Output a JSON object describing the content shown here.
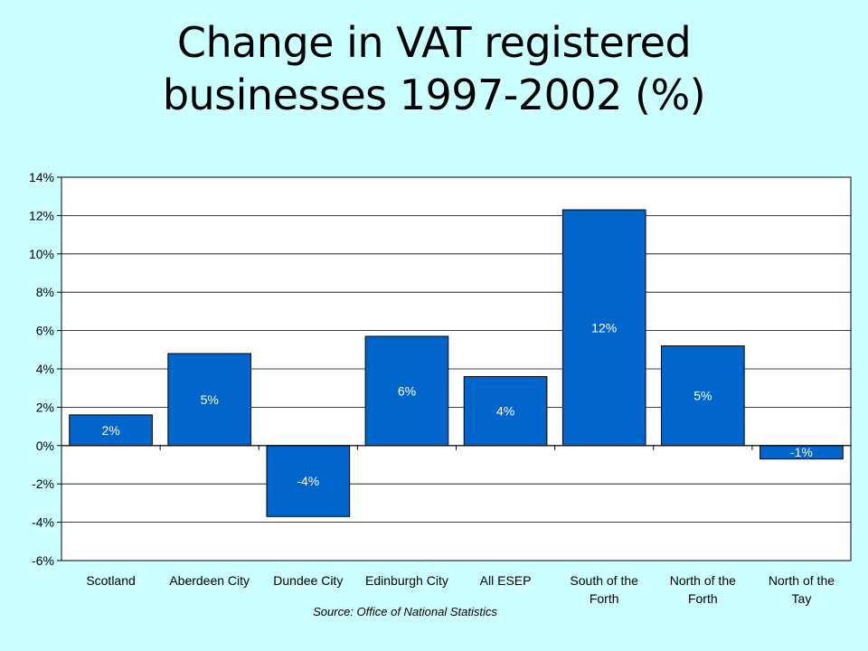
{
  "slide": {
    "title_line1": "Change in VAT registered",
    "title_line2": "businesses 1997-2002 (%)",
    "background": "#ccffff"
  },
  "chart_data": {
    "type": "bar",
    "categories": [
      [
        "Scotland"
      ],
      [
        "Aberdeen City"
      ],
      [
        "Dundee City"
      ],
      [
        "Edinburgh City"
      ],
      [
        "All ESEP"
      ],
      [
        "South of the",
        "Forth"
      ],
      [
        "North of the",
        "Forth"
      ],
      [
        "North of the",
        "Tay"
      ]
    ],
    "values": [
      1.6,
      4.8,
      -3.7,
      5.7,
      3.6,
      12.3,
      5.2,
      -0.7
    ],
    "data_labels": [
      "2%",
      "5%",
      "-4%",
      "6%",
      "4%",
      "12%",
      "5%",
      "-1%"
    ],
    "y_ticks": [
      "-6%",
      "-4%",
      "-2%",
      "0%",
      "2%",
      "4%",
      "6%",
      "8%",
      "10%",
      "12%",
      "14%"
    ],
    "ylim": [
      -6,
      14
    ],
    "grid": true,
    "legend": "none",
    "bar_color": "#0066cc",
    "label_color": "#ffffff",
    "source": "Source: Office of National Statistics"
  }
}
